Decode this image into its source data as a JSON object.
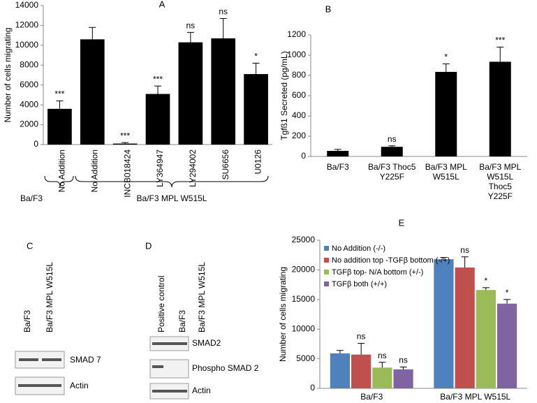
{
  "chart_data": [
    {
      "type": "bar",
      "panel": "A",
      "y_label": "Number of cells migrating",
      "categories": [
        "No Addition",
        "No Addition",
        "INCB018424",
        "LY364947",
        "LY294002",
        "SU6656",
        "U0126"
      ],
      "values": [
        3600,
        10600,
        100,
        5100,
        10300,
        10700,
        7100
      ],
      "errors": [
        800,
        1200,
        100,
        800,
        1000,
        2000,
        1100
      ],
      "annotations": [
        "***",
        null,
        "***",
        "***",
        "ns",
        "ns",
        "*"
      ],
      "group_labels": [
        "Ba/F3",
        "Ba/F3 MPL W515L"
      ],
      "color": "#000000",
      "ylim": [
        0,
        14000
      ],
      "yticks": [
        0,
        2000,
        4000,
        6000,
        8000,
        10000,
        12000,
        14000
      ]
    },
    {
      "type": "bar",
      "panel": "B",
      "y_label": "Tgfß1 Secreted (pg/mL)",
      "categories": [
        "Ba/F3",
        "Ba/F3 Thoc5 Y225F",
        "Ba/F3 MPL W515L",
        "Ba/F3 MPL W515L Thoc5 Y225F"
      ],
      "values": [
        55,
        95,
        835,
        935
      ],
      "errors": [
        15,
        10,
        80,
        145
      ],
      "annotations": [
        null,
        "ns",
        "*",
        "***"
      ],
      "color": "#000000",
      "ylim": [
        0,
        1200
      ],
      "yticks": [
        0,
        200,
        400,
        600,
        800,
        1000,
        1200
      ]
    },
    {
      "type": "grouped_bar",
      "panel": "E",
      "y_label": "Number of cells migrating",
      "categories": [
        "Ba/F3",
        "Ba/F3 MPL W515L"
      ],
      "series": [
        {
          "name": "No Addition (-/-)",
          "color": "#4f81bd",
          "values": [
            5900,
            21800
          ],
          "errors": [
            500,
            300
          ],
          "annotations": [
            null,
            null
          ]
        },
        {
          "name": "No addition top -TGFβ bottom (-/+)",
          "color": "#c0504d",
          "values": [
            5700,
            20400
          ],
          "errors": [
            1900,
            1800
          ],
          "annotations": [
            "ns",
            "ns"
          ]
        },
        {
          "name": "TGFβ top- N/A bottom (+/-)",
          "color": "#9bbb59",
          "values": [
            3500,
            16600
          ],
          "errors": [
            900,
            400
          ],
          "annotations": [
            "ns",
            "*"
          ]
        },
        {
          "name": "TGFβ both (+/+)",
          "color": "#8064a2",
          "values": [
            3200,
            14300
          ],
          "errors": [
            400,
            700
          ],
          "annotations": [
            "ns",
            "*"
          ]
        }
      ],
      "ylim": [
        0,
        25000
      ],
      "yticks": [
        0,
        5000,
        10000,
        15000,
        20000,
        25000
      ],
      "legend": "top-left"
    }
  ],
  "blots": [
    {
      "panel": "C",
      "lanes": [
        "Ba/F3",
        "Ba/F3 MPL W515L"
      ],
      "bands": [
        "SMAD 7",
        "Actin"
      ]
    },
    {
      "panel": "D",
      "lanes": [
        "Positive control",
        "Ba/F3",
        "Ba/F3 MPL W515L"
      ],
      "bands": [
        "SMAD2",
        "Phospho SMAD 2",
        "Actin"
      ]
    }
  ]
}
